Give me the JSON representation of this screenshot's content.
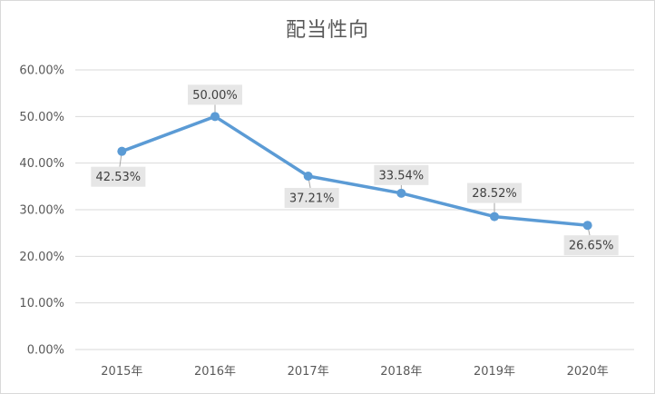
{
  "chart_data": {
    "type": "line",
    "title": "配当性向",
    "xlabel": "",
    "ylabel": "",
    "categories": [
      "2015年",
      "2016年",
      "2017年",
      "2018年",
      "2019年",
      "2020年"
    ],
    "series": [
      {
        "values": [
          42.53,
          50.0,
          37.21,
          33.54,
          28.52,
          26.65
        ]
      }
    ],
    "data_labels": [
      "42.53%",
      "50.00%",
      "37.21%",
      "33.54%",
      "28.52%",
      "26.65%"
    ],
    "ylim": [
      0,
      60
    ],
    "yticks": [
      "0.00%",
      "10.00%",
      "20.00%",
      "30.00%",
      "40.00%",
      "50.00%",
      "60.00%"
    ],
    "grid": true,
    "legend": "none",
    "line_color": "#5b9bd5"
  }
}
